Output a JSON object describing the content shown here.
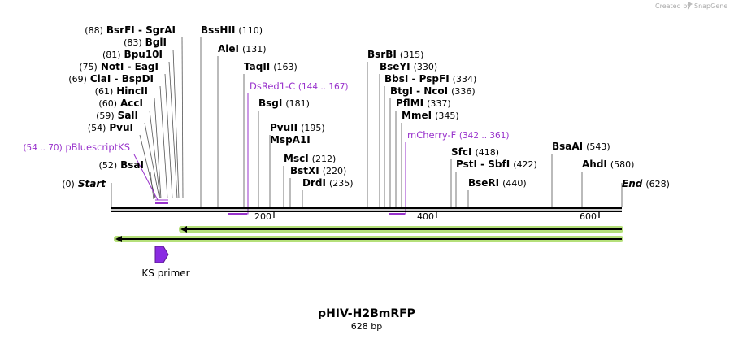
{
  "credit": {
    "prefix": "Created by",
    "brand": "SnapGene"
  },
  "plasmid": {
    "name": "pHIV-H2BmRFP",
    "length_label": "628 bp",
    "length": 628
  },
  "colors": {
    "primer": "#9933cc",
    "feature_fill": "#8a2be2",
    "orf_glow": "#b5e07a"
  },
  "sites": [
    {
      "name": "Start",
      "pos": 0,
      "pos_label": "(0)",
      "italic": true
    },
    {
      "name": "BsaI",
      "pos": 52,
      "pos_label": "(52)"
    },
    {
      "name": "PvuI",
      "pos": 54,
      "pos_label": "(54)"
    },
    {
      "name": "SalI",
      "pos": 59,
      "pos_label": "(59)"
    },
    {
      "name": "AccI",
      "pos": 60,
      "pos_label": "(60)"
    },
    {
      "name": "HincII",
      "pos": 61,
      "pos_label": "(61)"
    },
    {
      "name": "ClaI - BspDI",
      "pos": 69,
      "pos_label": "(69)"
    },
    {
      "name": "NotI - EagI",
      "pos": 75,
      "pos_label": "(75)"
    },
    {
      "name": "Bpu10I",
      "pos": 81,
      "pos_label": "(81)"
    },
    {
      "name": "BglI",
      "pos": 83,
      "pos_label": "(83)"
    },
    {
      "name": "BsrFI - SgrAI",
      "pos": 88,
      "pos_label": "(88)"
    },
    {
      "name": "BssHII",
      "pos": 110,
      "pos_label": "(110)"
    },
    {
      "name": "AleI",
      "pos": 131,
      "pos_label": "(131)"
    },
    {
      "name": "TaqII",
      "pos": 163,
      "pos_label": "(163)"
    },
    {
      "name": "BsgI",
      "pos": 181,
      "pos_label": "(181)"
    },
    {
      "name": "PvuII",
      "pos": 195,
      "pos_label": "(195)"
    },
    {
      "name": "MspA1I",
      "pos": 195,
      "pos_label": ""
    },
    {
      "name": "MscI",
      "pos": 212,
      "pos_label": "(212)"
    },
    {
      "name": "BstXI",
      "pos": 220,
      "pos_label": "(220)"
    },
    {
      "name": "DrdI",
      "pos": 235,
      "pos_label": "(235)"
    },
    {
      "name": "BsrBI",
      "pos": 315,
      "pos_label": "(315)"
    },
    {
      "name": "BseYI",
      "pos": 330,
      "pos_label": "(330)"
    },
    {
      "name": "BbsI - PspFI",
      "pos": 334,
      "pos_label": "(334)"
    },
    {
      "name": "BtgI - NcoI",
      "pos": 336,
      "pos_label": "(336)"
    },
    {
      "name": "PflMI",
      "pos": 337,
      "pos_label": "(337)"
    },
    {
      "name": "MmeI",
      "pos": 345,
      "pos_label": "(345)"
    },
    {
      "name": "SfcI",
      "pos": 418,
      "pos_label": "(418)"
    },
    {
      "name": "PstI - SbfI",
      "pos": 422,
      "pos_label": "(422)"
    },
    {
      "name": "BseRI",
      "pos": 440,
      "pos_label": "(440)"
    },
    {
      "name": "BsaAI",
      "pos": 543,
      "pos_label": "(543)"
    },
    {
      "name": "AhdI",
      "pos": 580,
      "pos_label": "(580)"
    },
    {
      "name": "End",
      "pos": 628,
      "pos_label": "(628)",
      "italic": true
    }
  ],
  "primers": [
    {
      "name": "pBluescriptKS",
      "range_label": "(54 .. 70)",
      "start": 54,
      "end": 70,
      "label_first": "range"
    },
    {
      "name": "DsRed1-C",
      "range_label": "(144 .. 167)",
      "start": 144,
      "end": 167,
      "label_first": "name"
    },
    {
      "name": "mCherry-F",
      "range_label": "(342 .. 361)",
      "start": 342,
      "end": 361,
      "label_first": "name"
    }
  ],
  "ruler": {
    "ticks": [
      {
        "value": 200,
        "label": "200"
      },
      {
        "value": 400,
        "label": "400"
      },
      {
        "value": 600,
        "label": "600"
      }
    ]
  },
  "orfs": [
    {
      "start": 85,
      "end": 628,
      "direction": "reverse"
    },
    {
      "start": 5,
      "end": 628,
      "direction": "reverse"
    }
  ],
  "features": [
    {
      "name": "KS primer",
      "start": 54,
      "end": 70,
      "direction": "forward"
    }
  ]
}
